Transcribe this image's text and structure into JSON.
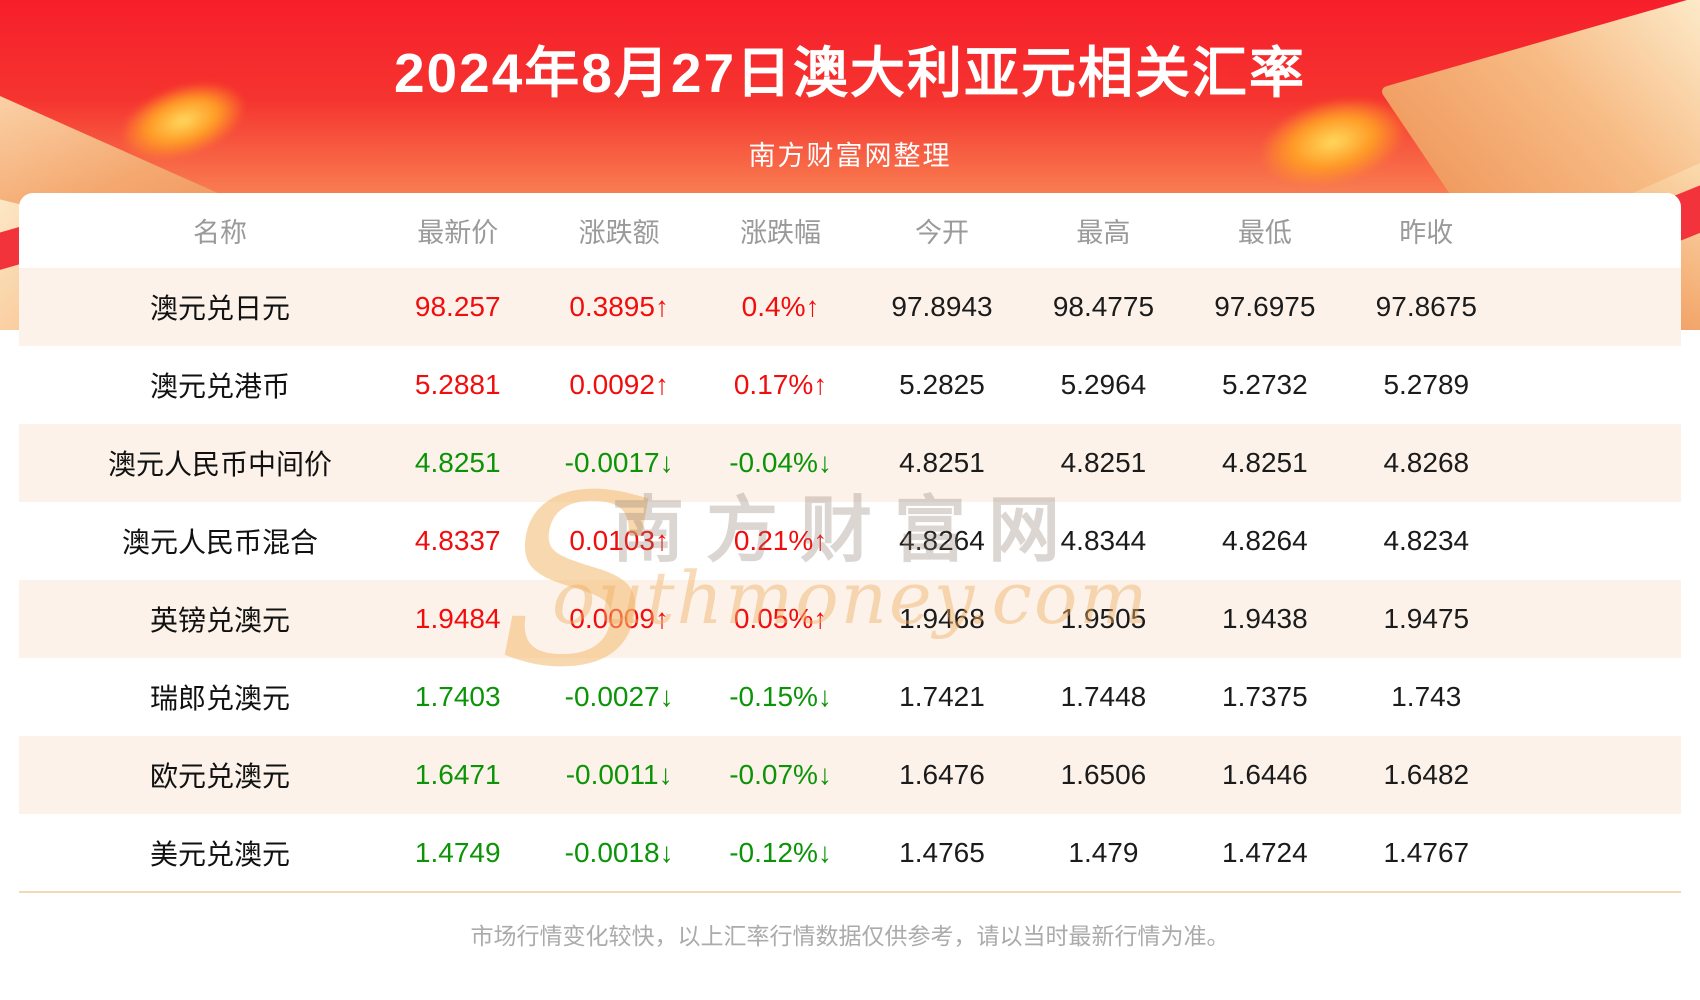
{
  "header": {
    "title": "2024年8月27日澳大利亚元相关汇率",
    "subtitle": "南方财富网整理"
  },
  "chart_data": {
    "type": "table",
    "title": "2024年8月27日澳大利亚元相关汇率",
    "subtitle": "南方财富网整理",
    "columns": [
      "名称",
      "最新价",
      "涨跌额",
      "涨跌幅",
      "今开",
      "最高",
      "最低",
      "昨收"
    ],
    "rows": [
      {
        "name": "澳元兑日元",
        "latest": "98.257",
        "change": "0.3895↑",
        "change_pct": "0.4%↑",
        "open": "97.8943",
        "high": "98.4775",
        "low": "97.6975",
        "prev_close": "97.8675",
        "trend": "up"
      },
      {
        "name": "澳元兑港币",
        "latest": "5.2881",
        "change": "0.0092↑",
        "change_pct": "0.17%↑",
        "open": "5.2825",
        "high": "5.2964",
        "low": "5.2732",
        "prev_close": "5.2789",
        "trend": "up"
      },
      {
        "name": "澳元人民币中间价",
        "latest": "4.8251",
        "change": "-0.0017↓",
        "change_pct": "-0.04%↓",
        "open": "4.8251",
        "high": "4.8251",
        "low": "4.8251",
        "prev_close": "4.8268",
        "trend": "down"
      },
      {
        "name": "澳元人民币混合",
        "latest": "4.8337",
        "change": "0.0103↑",
        "change_pct": "0.21%↑",
        "open": "4.8264",
        "high": "4.8344",
        "low": "4.8264",
        "prev_close": "4.8234",
        "trend": "up"
      },
      {
        "name": "英镑兑澳元",
        "latest": "1.9484",
        "change": "0.0009↑",
        "change_pct": "0.05%↑",
        "open": "1.9468",
        "high": "1.9505",
        "low": "1.9438",
        "prev_close": "1.9475",
        "trend": "up"
      },
      {
        "name": "瑞郎兑澳元",
        "latest": "1.7403",
        "change": "-0.0027↓",
        "change_pct": "-0.15%↓",
        "open": "1.7421",
        "high": "1.7448",
        "low": "1.7375",
        "prev_close": "1.743",
        "trend": "down"
      },
      {
        "name": "欧元兑澳元",
        "latest": "1.6471",
        "change": "-0.0011↓",
        "change_pct": "-0.07%↓",
        "open": "1.6476",
        "high": "1.6506",
        "low": "1.6446",
        "prev_close": "1.6482",
        "trend": "down"
      },
      {
        "name": "美元兑澳元",
        "latest": "1.4749",
        "change": "-0.0018↓",
        "change_pct": "-0.12%↓",
        "open": "1.4765",
        "high": "1.479",
        "low": "1.4724",
        "prev_close": "1.4767",
        "trend": "down"
      }
    ]
  },
  "watermark": {
    "cn": "南方财富网",
    "en": "Southmoney.com",
    "en_initial": "S",
    "en_rest": "outhmoney.com"
  },
  "footer": {
    "note": "市场行情变化较快，以上汇率行情数据仅供参考，请以当时最新行情为准。"
  },
  "colors": {
    "banner_red": "#f71e2b",
    "banner_orange": "#fbaa76",
    "up_red": "#f20d0d",
    "down_green": "#0c9408",
    "row_stripe": "#fcf2ea",
    "header_gray": "#9a9a9a",
    "divider_tan": "#f3d8b6"
  }
}
